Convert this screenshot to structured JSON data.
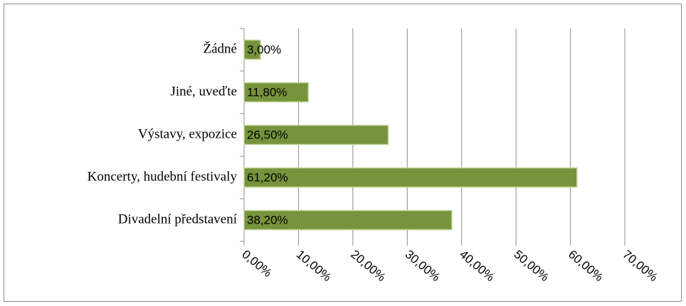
{
  "chart_data": {
    "type": "barh",
    "categories": [
      "Žádné",
      "Jiné, uveďte",
      "Výstavy, expozice",
      "Koncerty, hudební festivaly",
      "Divadelní představení"
    ],
    "values": [
      3.0,
      11.8,
      26.5,
      61.2,
      38.2
    ],
    "value_labels": [
      "3,00%",
      "11,80%",
      "26,50%",
      "61,20%",
      "38,20%"
    ],
    "color": "#77933c",
    "xlim": [
      0,
      70
    ],
    "xticks": [
      {
        "value": 0,
        "label": "0,00%"
      },
      {
        "value": 10,
        "label": "10,00%"
      },
      {
        "value": 20,
        "label": "20,00%"
      },
      {
        "value": 30,
        "label": "30,00%"
      },
      {
        "value": 40,
        "label": "40,00%"
      },
      {
        "value": 50,
        "label": "50,00%"
      },
      {
        "value": 60,
        "label": "60,00%"
      },
      {
        "value": 70,
        "label": "70,00%"
      }
    ],
    "grid": true
  }
}
